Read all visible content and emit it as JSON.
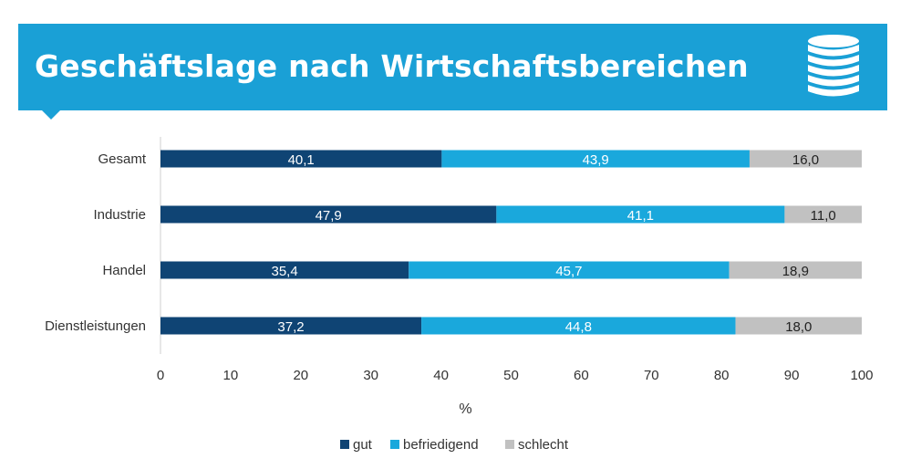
{
  "header": {
    "title": "Geschäftslage nach Wirtschaftsbereichen",
    "icon": "database-icon",
    "background": "#1aa0d6"
  },
  "chart_data": {
    "type": "bar",
    "orientation": "horizontal",
    "stacked": true,
    "categories": [
      "Gesamt",
      "Industrie",
      "Handel",
      "Dienstleistungen"
    ],
    "series": [
      {
        "name": "gut",
        "color": "#0f4474",
        "label_color": "#ffffff",
        "values": [
          40.1,
          47.9,
          35.4,
          37.2
        ],
        "labels": [
          "40,1",
          "47,9",
          "35,4",
          "37,2"
        ]
      },
      {
        "name": "befriedigend",
        "color": "#1aa8dc",
        "label_color": "#ffffff",
        "values": [
          43.9,
          41.1,
          45.7,
          44.8
        ],
        "labels": [
          "43,9",
          "41,1",
          "45,7",
          "44,8"
        ]
      },
      {
        "name": "schlecht",
        "color": "#c1c1c1",
        "label_color": "#222222",
        "values": [
          16.0,
          11.0,
          18.9,
          18.0
        ],
        "labels": [
          "16,0",
          "11,0",
          "18,9",
          "18,0"
        ]
      }
    ],
    "xlim": [
      0,
      100
    ],
    "xticks": [
      0,
      10,
      20,
      30,
      40,
      50,
      60,
      70,
      80,
      90,
      100
    ],
    "xlabel": "%",
    "ylabel": "",
    "grid": false,
    "legend_position": "bottom-center"
  }
}
